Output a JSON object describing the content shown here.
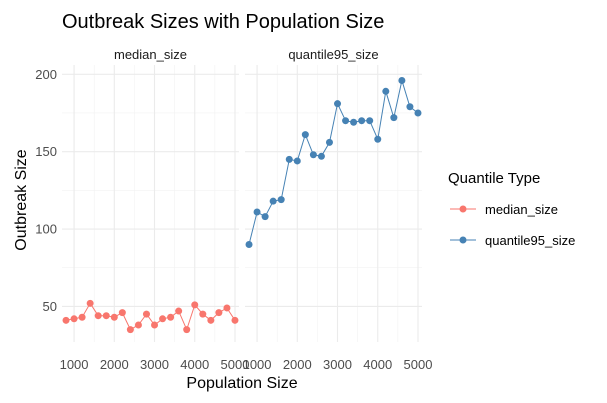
{
  "chart_data": {
    "type": "line",
    "title": "Outbreak Sizes with Population Size",
    "xlabel": "Population Size",
    "ylabel": "Outbreak Size",
    "xlim": [
      700,
      5100
    ],
    "ylim": [
      27,
      206
    ],
    "x_ticks": [
      1000,
      2000,
      3000,
      4000,
      5000
    ],
    "y_ticks": [
      50,
      100,
      150,
      200
    ],
    "grid": true,
    "legend": {
      "title": "Quantile Type",
      "position": "right"
    },
    "facets": [
      "median_size",
      "quantile95_size"
    ],
    "x": [
      800,
      1000,
      1200,
      1400,
      1600,
      1800,
      2000,
      2200,
      2400,
      2600,
      2800,
      3000,
      3200,
      3400,
      3600,
      3800,
      4000,
      4200,
      4400,
      4600,
      4800,
      5000
    ],
    "series": [
      {
        "name": "median_size",
        "color": "#F8766D",
        "values": [
          41,
          42,
          43,
          52,
          44,
          44,
          43,
          46,
          35,
          38,
          45,
          38,
          42,
          43,
          47,
          35,
          51,
          45,
          41,
          46,
          49,
          41
        ]
      },
      {
        "name": "quantile95_size",
        "color": "#4682B4",
        "values": [
          90,
          111,
          108,
          118,
          119,
          145,
          144,
          161,
          148,
          147,
          156,
          181,
          170,
          169,
          170,
          170,
          158,
          189,
          172,
          196,
          179,
          175
        ]
      }
    ]
  }
}
